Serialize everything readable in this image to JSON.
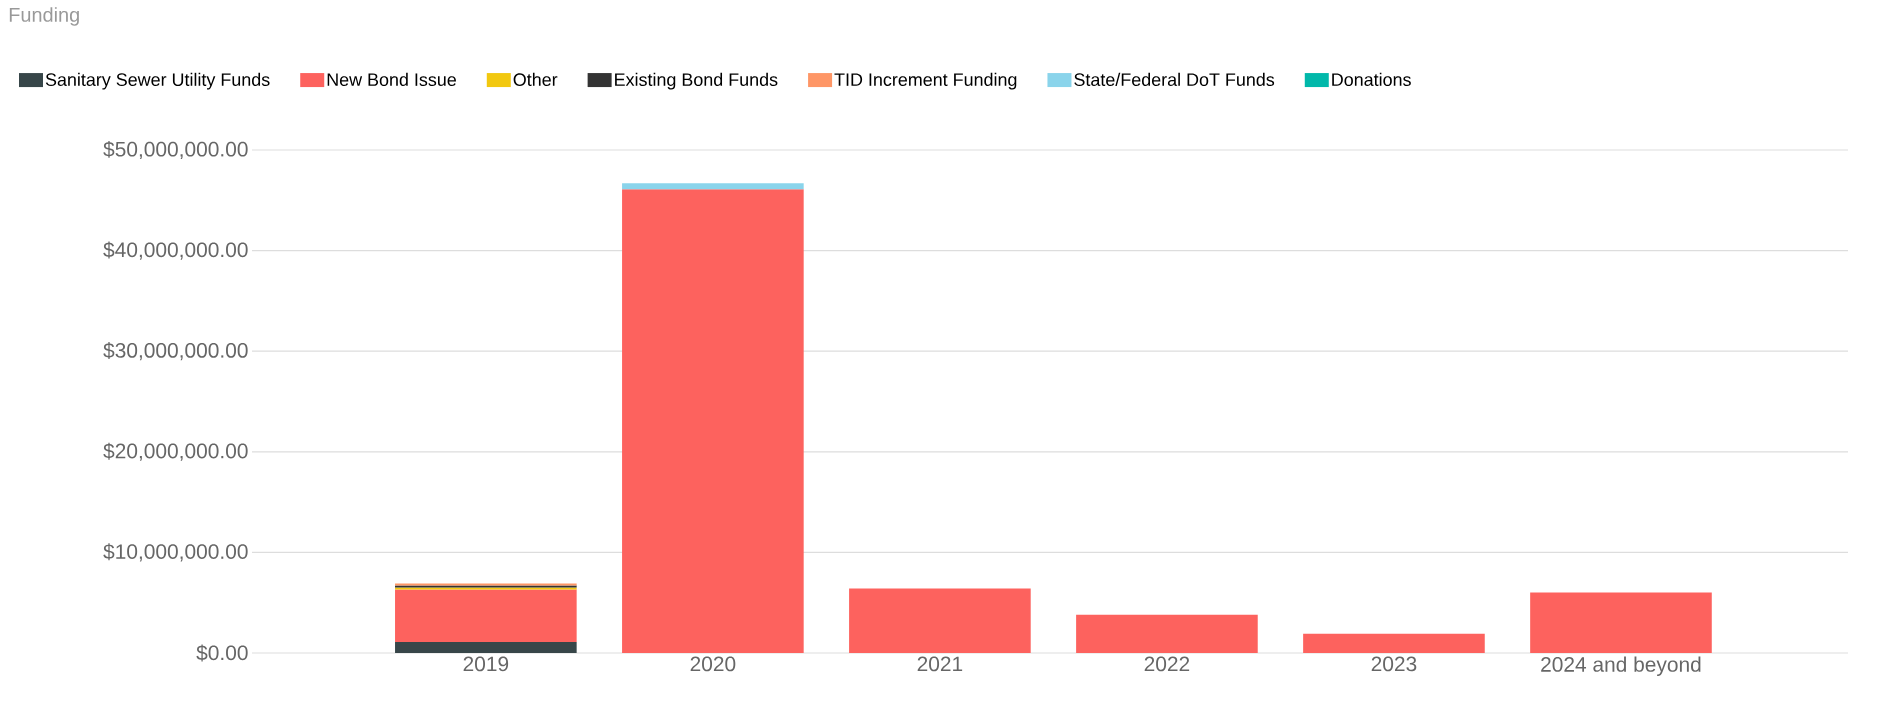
{
  "chart_data": {
    "type": "bar",
    "title": "Funding",
    "stacked": true,
    "legend": "top left",
    "grid": "y",
    "categories": [
      "2019",
      "2020",
      "2021",
      "2022",
      "2023",
      "2024 and beyond"
    ],
    "series": [
      {
        "name": "Sanitary Sewer Utility Funds",
        "color": "#374649",
        "values": [
          1100000,
          null,
          null,
          null,
          null,
          null
        ]
      },
      {
        "name": "New Bond Issue",
        "color": "#fd625e",
        "values": [
          5200000,
          46100000,
          6400000,
          3800000,
          1900000,
          6000000
        ]
      },
      {
        "name": "Other",
        "color": "#f2c80f",
        "values": [
          200000,
          null,
          null,
          null,
          null,
          null
        ]
      },
      {
        "name": "Existing Bond Funds",
        "color": "#333333",
        "values": [
          200000,
          null,
          null,
          null,
          null,
          null
        ]
      },
      {
        "name": "TID Increment Funding",
        "color": "#fe9666",
        "values": [
          200000,
          null,
          null,
          null,
          null,
          null
        ]
      },
      {
        "name": "State/Federal DoT Funds",
        "color": "#8ad4eb",
        "values": [
          null,
          600000,
          null,
          null,
          null,
          null
        ]
      },
      {
        "name": "Donations",
        "color": "#01b8aa",
        "values": [
          null,
          null,
          null,
          null,
          null,
          null
        ]
      }
    ],
    "ylim": [
      0,
      50000000
    ],
    "yticks": [
      {
        "value": 0,
        "label": "$0.00"
      },
      {
        "value": 10000000,
        "label": "$10,000,000.00"
      },
      {
        "value": 20000000,
        "label": "$20,000,000.00"
      },
      {
        "value": 30000000,
        "label": "$30,000,000.00"
      },
      {
        "value": 40000000,
        "label": "$40,000,000.00"
      },
      {
        "value": 50000000,
        "label": "$50,000,000.00"
      }
    ]
  }
}
